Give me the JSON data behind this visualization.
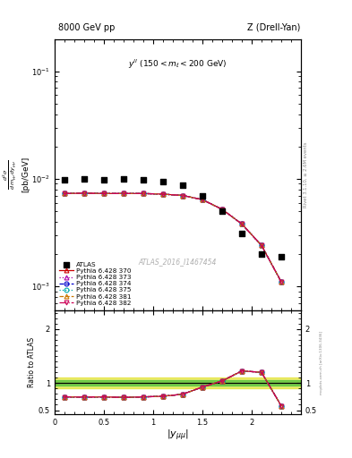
{
  "title_left": "8000 GeV pp",
  "title_right": "Z (Drell-Yan)",
  "annotation": "y^{ll} (150 < m_{l} < 200 GeV)",
  "watermark": "ATLAS_2016_I1467454",
  "rivet_label": "Rivet 3.1.10, ≥ 2.6M events",
  "mcplots_label": "mcplots.cern.ch [arXiv:1306.3436]",
  "ylabel_main": "$\\frac{d^2\\sigma}{d\\,m_{\\mu\\mu}\\,dy_{\\mu\\mu}}$ [pb/GeV]",
  "ylabel_ratio": "Ratio to ATLAS",
  "xlabel": "$|y_{\\mu\\mu}|$",
  "ylim_main": [
    0.0006,
    0.2
  ],
  "ylim_ratio": [
    0.42,
    2.35
  ],
  "xlim": [
    0,
    2.5
  ],
  "x_data": [
    0.1,
    0.3,
    0.5,
    0.7,
    0.9,
    1.1,
    1.3,
    1.5,
    1.7,
    1.9,
    2.1,
    2.3
  ],
  "atlas_y": [
    0.0098,
    0.0099,
    0.0098,
    0.0099,
    0.0098,
    0.0095,
    0.0088,
    0.0069,
    0.005,
    0.0031,
    0.002,
    0.0019
  ],
  "py370_y": [
    0.0073,
    0.00735,
    0.0073,
    0.0073,
    0.0073,
    0.0072,
    0.007,
    0.0064,
    0.0052,
    0.0038,
    0.0024,
    0.0011
  ],
  "py373_y": [
    0.0073,
    0.00735,
    0.0073,
    0.0073,
    0.0073,
    0.0072,
    0.007,
    0.0064,
    0.0052,
    0.0038,
    0.0024,
    0.0011
  ],
  "py374_y": [
    0.0073,
    0.00735,
    0.0073,
    0.0073,
    0.0073,
    0.0072,
    0.007,
    0.0064,
    0.0052,
    0.0038,
    0.0024,
    0.0011
  ],
  "py375_y": [
    0.0073,
    0.00735,
    0.0073,
    0.0073,
    0.0073,
    0.0072,
    0.007,
    0.0064,
    0.0052,
    0.0038,
    0.0024,
    0.0011
  ],
  "py381_y": [
    0.0073,
    0.00735,
    0.0073,
    0.0073,
    0.0073,
    0.0072,
    0.007,
    0.0064,
    0.0052,
    0.0038,
    0.0024,
    0.0011
  ],
  "py382_y": [
    0.0073,
    0.00735,
    0.0073,
    0.0073,
    0.0073,
    0.0072,
    0.007,
    0.0064,
    0.0052,
    0.0038,
    0.0024,
    0.0011
  ],
  "ratio370": [
    0.745,
    0.743,
    0.745,
    0.737,
    0.745,
    0.758,
    0.795,
    0.928,
    1.04,
    1.226,
    1.2,
    0.579
  ],
  "ratio373": [
    0.745,
    0.743,
    0.745,
    0.737,
    0.745,
    0.758,
    0.795,
    0.928,
    1.04,
    1.226,
    1.2,
    0.579
  ],
  "ratio374": [
    0.745,
    0.743,
    0.745,
    0.737,
    0.745,
    0.758,
    0.795,
    0.928,
    1.04,
    1.226,
    1.2,
    0.579
  ],
  "ratio375": [
    0.745,
    0.743,
    0.745,
    0.737,
    0.745,
    0.758,
    0.795,
    0.928,
    1.04,
    1.226,
    1.2,
    0.579
  ],
  "ratio381": [
    0.745,
    0.743,
    0.745,
    0.737,
    0.745,
    0.758,
    0.795,
    0.928,
    1.04,
    1.226,
    1.2,
    0.579
  ],
  "ratio382": [
    0.745,
    0.743,
    0.745,
    0.737,
    0.745,
    0.758,
    0.795,
    0.928,
    1.04,
    1.226,
    1.2,
    0.579
  ],
  "color_370": "#cc0000",
  "color_373": "#aa00aa",
  "color_374": "#0000cc",
  "color_375": "#00aaaa",
  "color_381": "#cc7700",
  "color_382": "#cc0055",
  "atlas_color": "#000000",
  "green_band_color": "#33bb33",
  "yellow_band_color": "#dddd00"
}
